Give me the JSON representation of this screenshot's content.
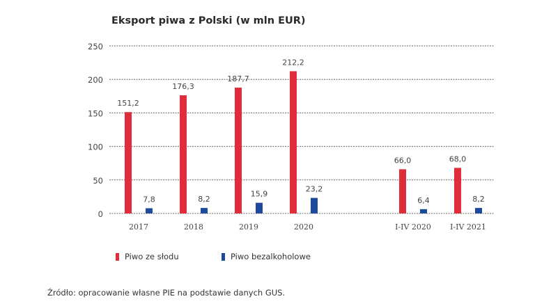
{
  "chart_data": {
    "type": "bar",
    "title": "Eksport piwa z Polski (w mln EUR)",
    "categories": [
      "2017",
      "2018",
      "2019",
      "2020",
      "I-IV 2020",
      "I-IV 2021"
    ],
    "series": [
      {
        "name": "Piwo ze słodu",
        "color": "#e02d3c",
        "values": [
          151.2,
          176.3,
          187.7,
          212.2,
          66.0,
          68.0
        ],
        "labels": [
          "151,2",
          "176,3",
          "187,7",
          "212,2",
          "66,0",
          "68,0"
        ]
      },
      {
        "name": "Piwo bezalkoholowe",
        "color": "#1d4a9a",
        "values": [
          7.8,
          8.2,
          15.9,
          23.2,
          6.4,
          8.2
        ],
        "labels": [
          "7,8",
          "8,2",
          "15,9",
          "23,2",
          "6,4",
          "8,2"
        ]
      }
    ],
    "yticks": [
      0,
      50,
      100,
      150,
      200,
      250
    ],
    "ylim": [
      0,
      250
    ],
    "grid": true,
    "legend": "bottom-left",
    "xlabel": "",
    "ylabel": ""
  },
  "source": "Źródło: opracowanie własne PIE na podstawie danych GUS."
}
